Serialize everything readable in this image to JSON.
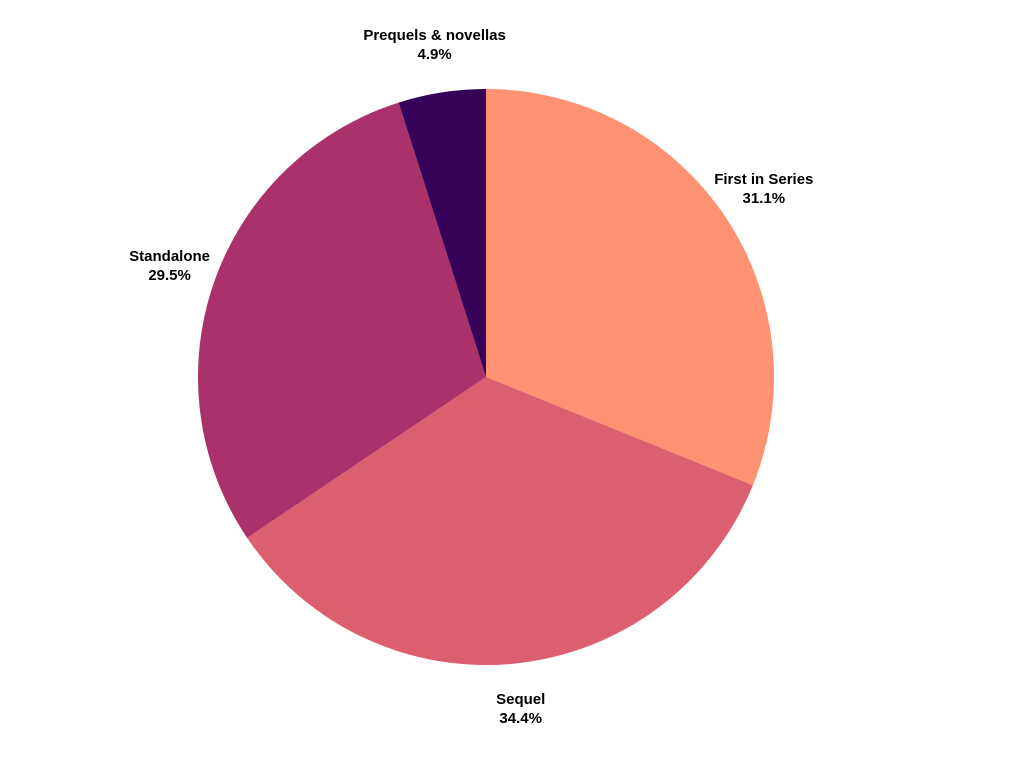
{
  "chart_data": {
    "type": "pie",
    "title": "",
    "start_angle_deg": 90,
    "direction": "clockwise",
    "legend": "none",
    "slices": [
      {
        "label": "First in Series",
        "value": 31.1,
        "display": "31.1%",
        "color": "#fe9273"
      },
      {
        "label": "Sequel",
        "value": 34.4,
        "display": "34.4%",
        "color": "#dc5f70"
      },
      {
        "label": "Standalone",
        "value": 29.5,
        "display": "29.5%",
        "color": "#ab316b"
      },
      {
        "label": "Prequels & novellas",
        "value": 4.9,
        "display": "4.9%",
        "color": "#360159"
      }
    ]
  }
}
